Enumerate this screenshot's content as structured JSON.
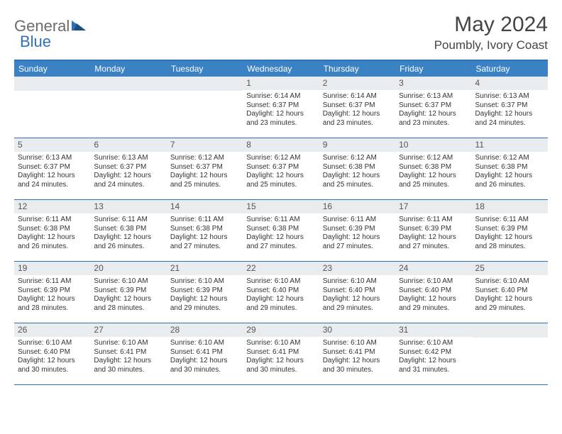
{
  "logo": {
    "general": "General",
    "blue": "Blue"
  },
  "title": "May 2024",
  "location": "Poumbly, Ivory Coast",
  "colors": {
    "header_bg": "#3b82c4",
    "border": "#2d72b8",
    "daynum_bg": "#e9ecef",
    "text": "#333333",
    "logo_gray": "#6b6b6b",
    "logo_blue": "#2d72b8"
  },
  "weekdays": [
    "Sunday",
    "Monday",
    "Tuesday",
    "Wednesday",
    "Thursday",
    "Friday",
    "Saturday"
  ],
  "weeks": [
    [
      {
        "n": "",
        "sr": "",
        "ss": "",
        "dl": ""
      },
      {
        "n": "",
        "sr": "",
        "ss": "",
        "dl": ""
      },
      {
        "n": "",
        "sr": "",
        "ss": "",
        "dl": ""
      },
      {
        "n": "1",
        "sr": "Sunrise: 6:14 AM",
        "ss": "Sunset: 6:37 PM",
        "dl": "Daylight: 12 hours and 23 minutes."
      },
      {
        "n": "2",
        "sr": "Sunrise: 6:14 AM",
        "ss": "Sunset: 6:37 PM",
        "dl": "Daylight: 12 hours and 23 minutes."
      },
      {
        "n": "3",
        "sr": "Sunrise: 6:13 AM",
        "ss": "Sunset: 6:37 PM",
        "dl": "Daylight: 12 hours and 23 minutes."
      },
      {
        "n": "4",
        "sr": "Sunrise: 6:13 AM",
        "ss": "Sunset: 6:37 PM",
        "dl": "Daylight: 12 hours and 24 minutes."
      }
    ],
    [
      {
        "n": "5",
        "sr": "Sunrise: 6:13 AM",
        "ss": "Sunset: 6:37 PM",
        "dl": "Daylight: 12 hours and 24 minutes."
      },
      {
        "n": "6",
        "sr": "Sunrise: 6:13 AM",
        "ss": "Sunset: 6:37 PM",
        "dl": "Daylight: 12 hours and 24 minutes."
      },
      {
        "n": "7",
        "sr": "Sunrise: 6:12 AM",
        "ss": "Sunset: 6:37 PM",
        "dl": "Daylight: 12 hours and 25 minutes."
      },
      {
        "n": "8",
        "sr": "Sunrise: 6:12 AM",
        "ss": "Sunset: 6:37 PM",
        "dl": "Daylight: 12 hours and 25 minutes."
      },
      {
        "n": "9",
        "sr": "Sunrise: 6:12 AM",
        "ss": "Sunset: 6:38 PM",
        "dl": "Daylight: 12 hours and 25 minutes."
      },
      {
        "n": "10",
        "sr": "Sunrise: 6:12 AM",
        "ss": "Sunset: 6:38 PM",
        "dl": "Daylight: 12 hours and 25 minutes."
      },
      {
        "n": "11",
        "sr": "Sunrise: 6:12 AM",
        "ss": "Sunset: 6:38 PM",
        "dl": "Daylight: 12 hours and 26 minutes."
      }
    ],
    [
      {
        "n": "12",
        "sr": "Sunrise: 6:11 AM",
        "ss": "Sunset: 6:38 PM",
        "dl": "Daylight: 12 hours and 26 minutes."
      },
      {
        "n": "13",
        "sr": "Sunrise: 6:11 AM",
        "ss": "Sunset: 6:38 PM",
        "dl": "Daylight: 12 hours and 26 minutes."
      },
      {
        "n": "14",
        "sr": "Sunrise: 6:11 AM",
        "ss": "Sunset: 6:38 PM",
        "dl": "Daylight: 12 hours and 27 minutes."
      },
      {
        "n": "15",
        "sr": "Sunrise: 6:11 AM",
        "ss": "Sunset: 6:38 PM",
        "dl": "Daylight: 12 hours and 27 minutes."
      },
      {
        "n": "16",
        "sr": "Sunrise: 6:11 AM",
        "ss": "Sunset: 6:39 PM",
        "dl": "Daylight: 12 hours and 27 minutes."
      },
      {
        "n": "17",
        "sr": "Sunrise: 6:11 AM",
        "ss": "Sunset: 6:39 PM",
        "dl": "Daylight: 12 hours and 27 minutes."
      },
      {
        "n": "18",
        "sr": "Sunrise: 6:11 AM",
        "ss": "Sunset: 6:39 PM",
        "dl": "Daylight: 12 hours and 28 minutes."
      }
    ],
    [
      {
        "n": "19",
        "sr": "Sunrise: 6:11 AM",
        "ss": "Sunset: 6:39 PM",
        "dl": "Daylight: 12 hours and 28 minutes."
      },
      {
        "n": "20",
        "sr": "Sunrise: 6:10 AM",
        "ss": "Sunset: 6:39 PM",
        "dl": "Daylight: 12 hours and 28 minutes."
      },
      {
        "n": "21",
        "sr": "Sunrise: 6:10 AM",
        "ss": "Sunset: 6:39 PM",
        "dl": "Daylight: 12 hours and 29 minutes."
      },
      {
        "n": "22",
        "sr": "Sunrise: 6:10 AM",
        "ss": "Sunset: 6:40 PM",
        "dl": "Daylight: 12 hours and 29 minutes."
      },
      {
        "n": "23",
        "sr": "Sunrise: 6:10 AM",
        "ss": "Sunset: 6:40 PM",
        "dl": "Daylight: 12 hours and 29 minutes."
      },
      {
        "n": "24",
        "sr": "Sunrise: 6:10 AM",
        "ss": "Sunset: 6:40 PM",
        "dl": "Daylight: 12 hours and 29 minutes."
      },
      {
        "n": "25",
        "sr": "Sunrise: 6:10 AM",
        "ss": "Sunset: 6:40 PM",
        "dl": "Daylight: 12 hours and 29 minutes."
      }
    ],
    [
      {
        "n": "26",
        "sr": "Sunrise: 6:10 AM",
        "ss": "Sunset: 6:40 PM",
        "dl": "Daylight: 12 hours and 30 minutes."
      },
      {
        "n": "27",
        "sr": "Sunrise: 6:10 AM",
        "ss": "Sunset: 6:41 PM",
        "dl": "Daylight: 12 hours and 30 minutes."
      },
      {
        "n": "28",
        "sr": "Sunrise: 6:10 AM",
        "ss": "Sunset: 6:41 PM",
        "dl": "Daylight: 12 hours and 30 minutes."
      },
      {
        "n": "29",
        "sr": "Sunrise: 6:10 AM",
        "ss": "Sunset: 6:41 PM",
        "dl": "Daylight: 12 hours and 30 minutes."
      },
      {
        "n": "30",
        "sr": "Sunrise: 6:10 AM",
        "ss": "Sunset: 6:41 PM",
        "dl": "Daylight: 12 hours and 30 minutes."
      },
      {
        "n": "31",
        "sr": "Sunrise: 6:10 AM",
        "ss": "Sunset: 6:42 PM",
        "dl": "Daylight: 12 hours and 31 minutes."
      },
      {
        "n": "",
        "sr": "",
        "ss": "",
        "dl": ""
      }
    ]
  ]
}
